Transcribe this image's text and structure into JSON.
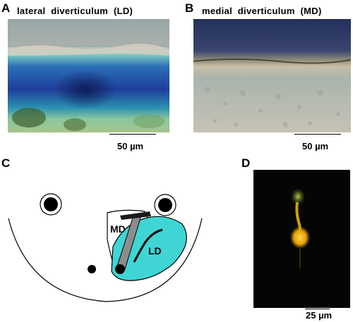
{
  "panels": {
    "a": {
      "letter": "A",
      "title": "lateral  diverticulum  (LD)",
      "scale": "50 µm"
    },
    "b": {
      "letter": "B",
      "title": "medial  diverticulum  (MD)",
      "scale": "50 µm"
    },
    "c": {
      "letter": "C",
      "label_md": "MD",
      "label_ld": "LD"
    },
    "d": {
      "letter": "D",
      "scale": "25 µm"
    }
  },
  "colors": {
    "ld_fill": "#3fd5d5",
    "md_fill": "#ffffff",
    "md_stripe": "#8c8c8c",
    "stain_blue": "#1f4aa5",
    "fluorescence": "#f0b000"
  }
}
